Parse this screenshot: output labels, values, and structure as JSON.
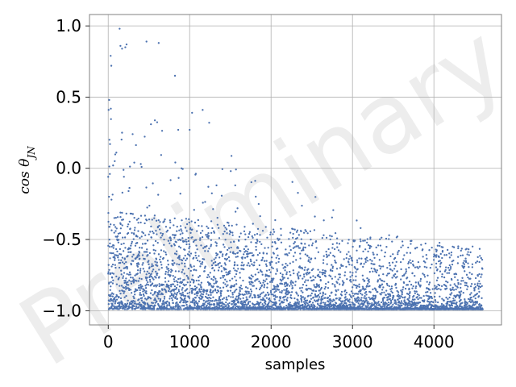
{
  "chart_data": {
    "type": "scatter",
    "title": "",
    "xlabel": "samples",
    "ylabel": "cos θ_JN",
    "xlim": [
      -230,
      4830
    ],
    "ylim": [
      -1.1,
      1.08
    ],
    "x_ticks": [
      0,
      1000,
      2000,
      3000,
      4000
    ],
    "x_tick_labels": [
      "0",
      "1000",
      "2000",
      "3000",
      "4000"
    ],
    "y_ticks": [
      -1.0,
      -0.5,
      0.0,
      0.5,
      1.0
    ],
    "y_tick_labels": [
      "−1.0",
      "−0.5",
      "0.0",
      "0.5",
      "1.0"
    ],
    "grid": true,
    "legend": "none",
    "n_samples": 4600,
    "marker_color": "#4c72b0",
    "watermark": "Preliminary",
    "series": [
      {
        "points": [
          [
            5,
            0.41
          ],
          [
            12,
            0.48
          ],
          [
            15,
            0.2
          ],
          [
            22,
            0.17
          ],
          [
            30,
            0.79
          ],
          [
            38,
            0.72
          ],
          [
            60,
            0.02
          ],
          [
            80,
            0.05
          ],
          [
            100,
            0.11
          ],
          [
            140,
            0.98
          ],
          [
            150,
            0.86
          ],
          [
            170,
            0.84
          ],
          [
            210,
            0.85
          ],
          [
            225,
            0.87
          ],
          [
            170,
            0.25
          ],
          [
            300,
            0.24
          ],
          [
            320,
            0.04
          ],
          [
            400,
            0.03
          ],
          [
            410,
            0.01
          ],
          [
            470,
            0.89
          ],
          [
            620,
            0.88
          ],
          [
            820,
            0.65
          ],
          [
            860,
            0.27
          ],
          [
            900,
            0.0
          ],
          [
            1000,
            0.27
          ],
          [
            1030,
            0.39
          ],
          [
            1160,
            0.41
          ],
          [
            1240,
            0.32
          ],
          [
            0,
            -0.06
          ],
          [
            20,
            -0.04
          ],
          [
            10,
            -0.2
          ],
          [
            40,
            -0.22
          ],
          [
            250,
            -0.16
          ],
          [
            1230,
            -0.13
          ],
          [
            1330,
            -0.12
          ],
          [
            1560,
            -0.12
          ],
          [
            3100,
            -0.42
          ],
          [
            3450,
            -0.47
          ],
          [
            4000,
            -0.62
          ],
          [
            4100,
            -0.63
          ],
          [
            4450,
            -0.59
          ]
        ]
      }
    ]
  }
}
